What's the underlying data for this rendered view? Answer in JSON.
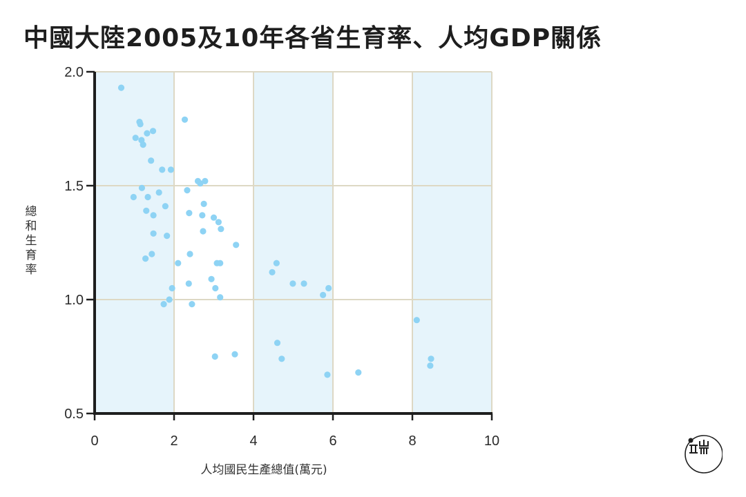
{
  "title": "中國大陸2005及10年各省生育率、人均GDP關係",
  "colors": {
    "band": "#e6f4fb",
    "grid": "#ddd8c4",
    "point": "#8ed3f4",
    "axis": "#1e1e1e",
    "text": "#2a2a2a"
  },
  "logo": {
    "icon": "initium-logo-icon"
  },
  "chart_data": {
    "type": "scatter",
    "title": "中國大陸2005及10年各省生育率、人均GDP關係",
    "xlabel": "人均國民生產總值(萬元)",
    "ylabel": "總和生育率",
    "xlim": [
      0,
      10
    ],
    "ylim": [
      0.5,
      2.0
    ],
    "xticks": [
      0,
      2,
      4,
      6,
      8,
      10
    ],
    "yticks": [
      0.5,
      1.0,
      1.5,
      2.0
    ],
    "ytick_labels": [
      "0.5",
      "1.0",
      "1.5",
      "2.0"
    ],
    "shaded_x_bands": [
      [
        0,
        2
      ],
      [
        4,
        6
      ],
      [
        8,
        10
      ]
    ],
    "grid": true,
    "legend": "none",
    "points": [
      {
        "x": 0.67,
        "y": 1.93
      },
      {
        "x": 1.13,
        "y": 1.78
      },
      {
        "x": 1.15,
        "y": 1.77
      },
      {
        "x": 1.03,
        "y": 1.71
      },
      {
        "x": 1.18,
        "y": 1.7
      },
      {
        "x": 1.22,
        "y": 1.68
      },
      {
        "x": 1.32,
        "y": 1.73
      },
      {
        "x": 1.47,
        "y": 1.74
      },
      {
        "x": 2.27,
        "y": 1.79
      },
      {
        "x": 1.42,
        "y": 1.61
      },
      {
        "x": 1.7,
        "y": 1.57
      },
      {
        "x": 1.92,
        "y": 1.57
      },
      {
        "x": 2.6,
        "y": 1.52
      },
      {
        "x": 2.66,
        "y": 1.51
      },
      {
        "x": 2.78,
        "y": 1.52
      },
      {
        "x": 1.19,
        "y": 1.49
      },
      {
        "x": 1.62,
        "y": 1.47
      },
      {
        "x": 2.33,
        "y": 1.48
      },
      {
        "x": 0.98,
        "y": 1.45
      },
      {
        "x": 1.34,
        "y": 1.45
      },
      {
        "x": 1.78,
        "y": 1.41
      },
      {
        "x": 2.75,
        "y": 1.42
      },
      {
        "x": 1.3,
        "y": 1.39
      },
      {
        "x": 1.48,
        "y": 1.37
      },
      {
        "x": 2.38,
        "y": 1.38
      },
      {
        "x": 2.71,
        "y": 1.37
      },
      {
        "x": 3.0,
        "y": 1.36
      },
      {
        "x": 3.12,
        "y": 1.34
      },
      {
        "x": 3.18,
        "y": 1.31
      },
      {
        "x": 1.48,
        "y": 1.29
      },
      {
        "x": 2.73,
        "y": 1.3
      },
      {
        "x": 1.82,
        "y": 1.28
      },
      {
        "x": 3.56,
        "y": 1.24
      },
      {
        "x": 1.44,
        "y": 1.2
      },
      {
        "x": 1.28,
        "y": 1.18
      },
      {
        "x": 2.4,
        "y": 1.2
      },
      {
        "x": 2.1,
        "y": 1.16
      },
      {
        "x": 3.08,
        "y": 1.16
      },
      {
        "x": 3.16,
        "y": 1.16
      },
      {
        "x": 4.58,
        "y": 1.16
      },
      {
        "x": 4.47,
        "y": 1.12
      },
      {
        "x": 2.94,
        "y": 1.09
      },
      {
        "x": 2.37,
        "y": 1.07
      },
      {
        "x": 3.04,
        "y": 1.05
      },
      {
        "x": 1.95,
        "y": 1.05
      },
      {
        "x": 4.99,
        "y": 1.07
      },
      {
        "x": 5.27,
        "y": 1.07
      },
      {
        "x": 5.89,
        "y": 1.05
      },
      {
        "x": 5.75,
        "y": 1.02
      },
      {
        "x": 3.16,
        "y": 1.01
      },
      {
        "x": 1.88,
        "y": 1.0
      },
      {
        "x": 1.74,
        "y": 0.98
      },
      {
        "x": 2.45,
        "y": 0.98
      },
      {
        "x": 8.11,
        "y": 0.91
      },
      {
        "x": 4.6,
        "y": 0.81
      },
      {
        "x": 3.03,
        "y": 0.75
      },
      {
        "x": 3.53,
        "y": 0.76
      },
      {
        "x": 4.71,
        "y": 0.74
      },
      {
        "x": 8.47,
        "y": 0.74
      },
      {
        "x": 8.45,
        "y": 0.71
      },
      {
        "x": 5.86,
        "y": 0.67
      },
      {
        "x": 6.64,
        "y": 0.68
      }
    ]
  }
}
